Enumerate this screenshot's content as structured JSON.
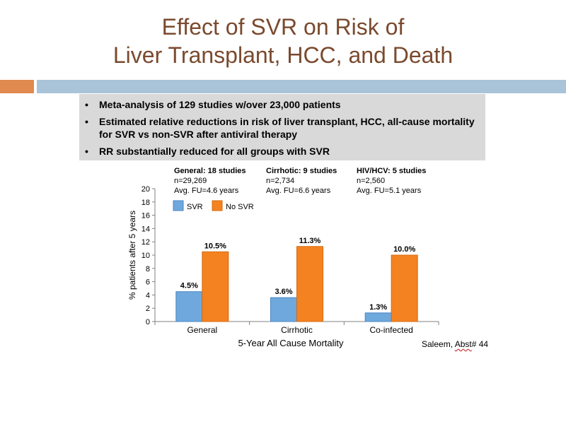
{
  "title": {
    "line1": "Effect of SVR on Risk of",
    "line2": "Liver Transplant, HCC, and Death"
  },
  "bullets": [
    "Meta-analysis of 129 studies w/over 23,000 patients",
    "Estimated relative reductions in risk of liver transplant, HCC, all-cause mortality for SVR vs non-SVR after antiviral therapy",
    "RR substantially reduced for all groups with SVR"
  ],
  "groups": [
    {
      "head": "General: 18 studies",
      "n": "n=29,269",
      "fu": "Avg. FU=4.6 years"
    },
    {
      "head": "Cirrhotic: 9 studies",
      "n": "n=2,734",
      "fu": "Avg. FU=6.6 years"
    },
    {
      "head": "HIV/HCV: 5 studies",
      "n": "n=2,560",
      "fu": "Avg. FU=5.1 years"
    }
  ],
  "citation": {
    "author": "Saleem, ",
    "abst": "Abst",
    "num": "# 44"
  },
  "colors": {
    "svr": "#6fa8dc",
    "no_svr": "#f58220"
  },
  "chart_data": {
    "type": "bar",
    "categories": [
      "General",
      "Cirrhotic",
      "Co-infected"
    ],
    "series": [
      {
        "name": "SVR",
        "values": [
          4.5,
          3.6,
          1.3
        ],
        "labels": [
          "4.5%",
          "3.6%",
          "1.3%"
        ]
      },
      {
        "name": "No SVR",
        "values": [
          10.5,
          11.3,
          10.0
        ],
        "labels": [
          "10.5%",
          "11.3%",
          "10.0%"
        ]
      }
    ],
    "xlabel": "5-Year All Cause Mortality",
    "ylabel": "% patients after 5 years",
    "ylim": [
      0,
      20
    ],
    "yticks": [
      "0",
      "2",
      "4",
      "6",
      "8",
      "10",
      "12",
      "14",
      "16",
      "18",
      "20"
    ],
    "legend": "top-left",
    "grid": false
  }
}
